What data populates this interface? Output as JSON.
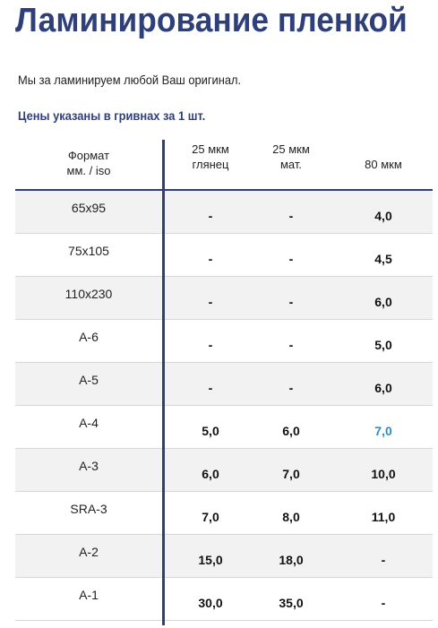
{
  "page": {
    "title": "Ламинирование пленкой",
    "intro": "Мы за ламинируем любой Ваш оригинал.",
    "note": "Цены указаны в гривнах за 1 шт."
  },
  "colors": {
    "brand": "#2e3f7a",
    "accent": "#2a8bc6",
    "row_shade": "#f2f2f2"
  },
  "table": {
    "headers": [
      [
        "Формат",
        "мм. / iso"
      ],
      [
        "25 мкм",
        "глянец"
      ],
      [
        "25 мкм",
        "мат."
      ],
      [
        "80 мкм"
      ]
    ],
    "rows": [
      {
        "format": "65x95",
        "g25": "-",
        "m25": "-",
        "m80": "4,0"
      },
      {
        "format": "75x105",
        "g25": "-",
        "m25": "-",
        "m80": "4,5"
      },
      {
        "format": "110x230",
        "g25": "-",
        "m25": "-",
        "m80": "6,0"
      },
      {
        "format": "A-6",
        "g25": "-",
        "m25": "-",
        "m80": "5,0"
      },
      {
        "format": "A-5",
        "g25": "-",
        "m25": "-",
        "m80": "6,0"
      },
      {
        "format": "A-4",
        "g25": "5,0",
        "m25": "6,0",
        "m80": "7,0",
        "highlight": true
      },
      {
        "format": "A-3",
        "g25": "6,0",
        "m25": "7,0",
        "m80": "10,0"
      },
      {
        "format": "SRA-3",
        "g25": "7,0",
        "m25": "8,0",
        "m80": "11,0"
      },
      {
        "format": "A-2",
        "g25": "15,0",
        "m25": "18,0",
        "m80": "-"
      },
      {
        "format": "A-1",
        "g25": "30,0",
        "m25": "35,0",
        "m80": "-"
      }
    ]
  }
}
